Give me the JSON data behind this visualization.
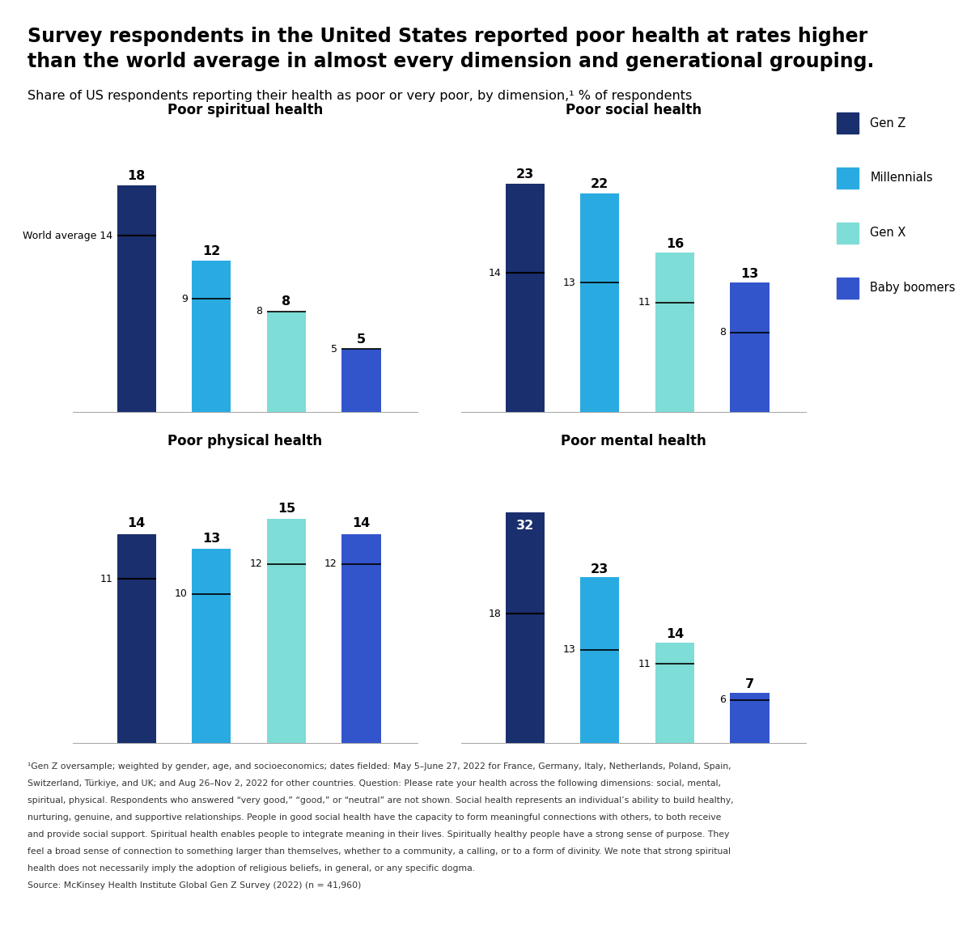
{
  "title_line1": "Survey respondents in the United States reported poor health at rates higher",
  "title_line2": "than the world average in almost every dimension and generational grouping.",
  "subtitle": "Share of US respondents reporting their health as poor or very poor, by dimension,¹ % of respondents",
  "charts": [
    {
      "title": "Poor spiritual health",
      "values": [
        18,
        12,
        8,
        5
      ],
      "world_avg": 14,
      "world_avg_label": "World average 14",
      "gen_world_avgs": [
        9,
        8,
        5
      ],
      "world_avg_is_long": true
    },
    {
      "title": "Poor social health",
      "values": [
        23,
        22,
        16,
        13
      ],
      "world_avg": 14,
      "world_avg_label": "14",
      "gen_world_avgs": [
        13,
        11,
        8
      ],
      "world_avg_is_long": false
    },
    {
      "title": "Poor physical health",
      "values": [
        14,
        13,
        15,
        14
      ],
      "world_avg": 11,
      "world_avg_label": "11",
      "gen_world_avgs": [
        10,
        12,
        12
      ],
      "world_avg_is_long": false
    },
    {
      "title": "Poor mental health",
      "values": [
        32,
        23,
        14,
        7
      ],
      "world_avg": 18,
      "world_avg_label": "18",
      "gen_world_avgs": [
        13,
        11,
        6
      ],
      "world_avg_is_long": false
    }
  ],
  "colors": [
    "#1a2f6e",
    "#29abe2",
    "#7eddd6",
    "#3355cc"
  ],
  "legend_labels": [
    "Gen Z",
    "Millennials",
    "Gen X",
    "Baby boomers"
  ],
  "footnote": "¹Gen Z oversample; weighted by gender, age, and socioeconomics; dates fielded: May 5–June 27, 2022 for France, Germany, Italy, Netherlands, Poland, Spain, Switzerland, Türkiye, and UK; and Aug 26–Nov 2, 2022 for other countries. Question: Please rate your health across the following dimensions: social, mental, spiritual, physical. Respondents who answered “very good,” “good,” or “neutral” are not shown. Social health represents an individual’s ability to build healthy, nurturing, genuine, and supportive relationships. People in good social health have the capacity to form meaningful connections with others, to both receive and provide social support. Spiritual health enables people to integrate meaning in their lives. Spiritually healthy people have a strong sense of purpose. They feel a broad sense of connection to something larger than themselves, whether to a community, a calling, or to a form of divinity. We note that strong spiritual health does not necessarily imply the adoption of religious beliefs, in general, or any specific dogma.\nSource: McKinsey Health Institute Global Gen Z Survey (2022) (n = 41,960)"
}
